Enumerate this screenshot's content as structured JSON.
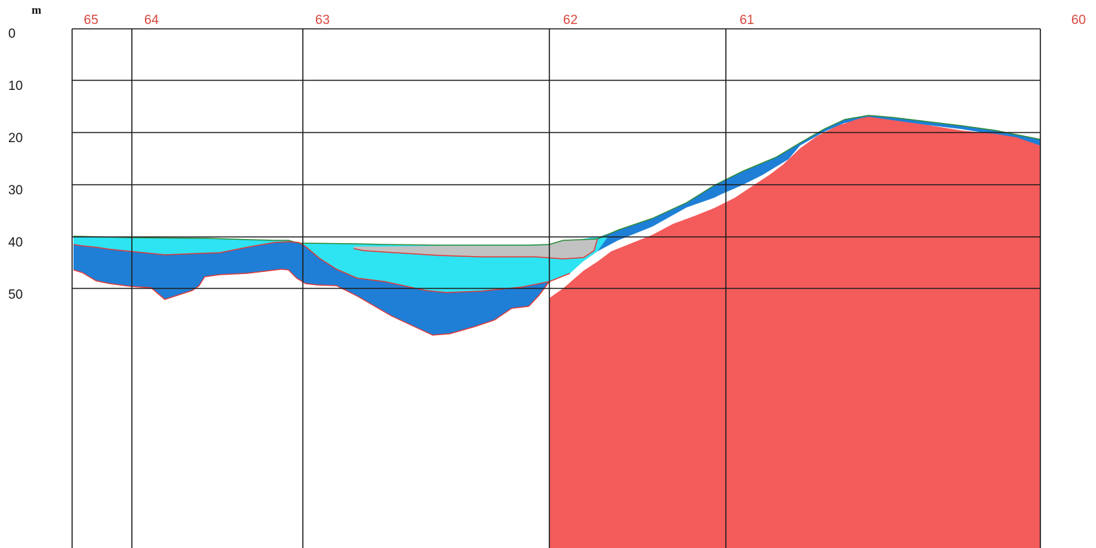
{
  "axis": {
    "unit": "m",
    "depth_ticks": [
      "0",
      "10",
      "20",
      "30",
      "40",
      "50"
    ]
  },
  "stations": [
    "65",
    "64",
    "63",
    "62",
    "61",
    "60"
  ],
  "colors": {
    "station_labels": "#d9473f",
    "grid": "#1e1e1e",
    "bedrock": "#f45b5b",
    "bedrock_outline": "#e03a3a",
    "dark_blue_layer": "#1f7fd6",
    "cyan_layer": "#2ee3f2",
    "gray_layer": "#c2c2c2",
    "surface_line": "#2e8b3a"
  },
  "layers": [
    {
      "name": "bedrock",
      "color": "#f45b5b"
    },
    {
      "name": "dark-blue-layer",
      "color": "#1f7fd6"
    },
    {
      "name": "cyan-layer",
      "color": "#2ee3f2"
    },
    {
      "name": "gray-layer",
      "color": "#c2c2c2"
    }
  ]
}
